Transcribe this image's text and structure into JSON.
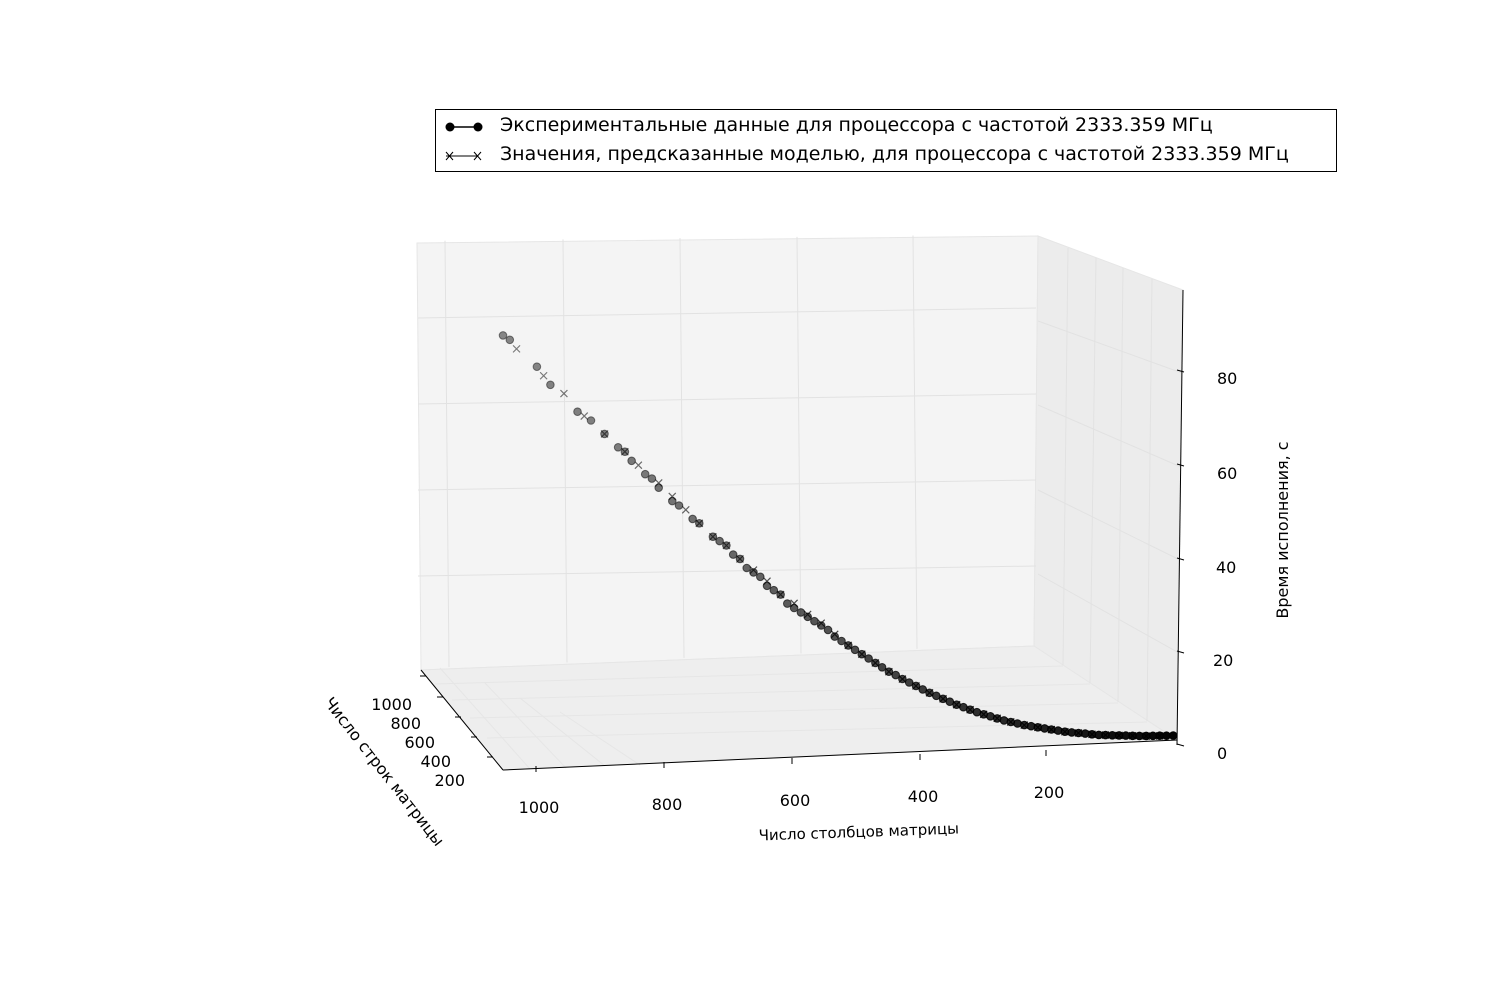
{
  "chart_data": {
    "type": "scatter",
    "projection": "3d",
    "xlabel": "Число столбцов матрицы",
    "ylabel": "Число строк матрицы",
    "zlabel": "Время исполнения, с",
    "x_ticks": [
      "1000",
      "800",
      "600",
      "400",
      "200"
    ],
    "y_ticks": [
      "1000",
      "800",
      "600",
      "400",
      "200"
    ],
    "z_ticks": [
      "0",
      "20",
      "40",
      "60",
      "80"
    ],
    "legend_placement": "top",
    "grid": true,
    "series": [
      {
        "name": "Экспериментальные данные для процессора с частотой 2333.359 МГц",
        "marker": "circle",
        "color": "#000000",
        "x": [
          1010,
          1000,
          960,
          940,
          900,
          880,
          860,
          840,
          830,
          820,
          800,
          790,
          780,
          760,
          750,
          730,
          720,
          700,
          690,
          680,
          670,
          660,
          650,
          640,
          630,
          620,
          610,
          600,
          590,
          580,
          570,
          560,
          550,
          540,
          530,
          520,
          510,
          500,
          490,
          480,
          470,
          460,
          450,
          440,
          430,
          420,
          410,
          400,
          390,
          380,
          370,
          360,
          350,
          340,
          330,
          320,
          310,
          300,
          290,
          280,
          270,
          260,
          250,
          240,
          230,
          220,
          210,
          200,
          190,
          180,
          170,
          160,
          150,
          140,
          130,
          120,
          110,
          100,
          90,
          80,
          70,
          60,
          50,
          40,
          30,
          20
        ],
        "z": [
          92,
          91,
          85,
          81,
          75,
          73,
          70,
          67,
          66,
          64,
          61,
          60,
          58,
          55,
          54,
          51,
          50,
          47,
          46,
          45,
          43,
          42,
          40,
          39,
          38,
          36,
          35,
          34,
          32,
          31,
          30,
          29,
          28,
          27,
          26,
          24.5,
          23.5,
          22.5,
          21.5,
          20.5,
          19.5,
          18.5,
          17.5,
          16.5,
          15.7,
          14.8,
          14,
          13.2,
          12.4,
          11.6,
          10.9,
          10.2,
          9.5,
          8.8,
          8.2,
          7.6,
          7,
          6.5,
          6,
          5.5,
          5,
          4.6,
          4.2,
          3.8,
          3.5,
          3.2,
          2.9,
          2.6,
          2.3,
          2.0,
          1.8,
          1.6,
          1.4,
          1.2,
          1.0,
          0.9,
          0.8,
          0.7,
          0.6,
          0.5,
          0.4,
          0.35,
          0.3,
          0.25,
          0.2,
          0.15
        ]
      },
      {
        "name": "Значения, предсказанные моделью, для процессора с частотой 2333.359 МГц",
        "marker": "x",
        "color": "#000000",
        "x": [
          990,
          950,
          920,
          890,
          860,
          830,
          810,
          780,
          760,
          740,
          720,
          700,
          680,
          660,
          640,
          620,
          600,
          580,
          560,
          540,
          520,
          500,
          480,
          460,
          440,
          420,
          400,
          380,
          360,
          340,
          320,
          300,
          280,
          260,
          240,
          220,
          200,
          180,
          160,
          140,
          120,
          100,
          80,
          60,
          40
        ],
        "z": [
          89,
          83,
          79,
          74,
          70,
          66,
          63,
          59,
          56,
          53,
          50,
          47,
          45,
          42,
          39.5,
          37,
          34,
          32,
          29.5,
          27.5,
          25,
          22.5,
          20.5,
          18.5,
          16.5,
          14.8,
          13.2,
          11.6,
          10.2,
          8.8,
          7.6,
          6.5,
          5.5,
          4.6,
          3.8,
          3.2,
          2.6,
          2.0,
          1.6,
          1.2,
          0.9,
          0.7,
          0.5,
          0.3,
          0.2
        ]
      }
    ]
  }
}
